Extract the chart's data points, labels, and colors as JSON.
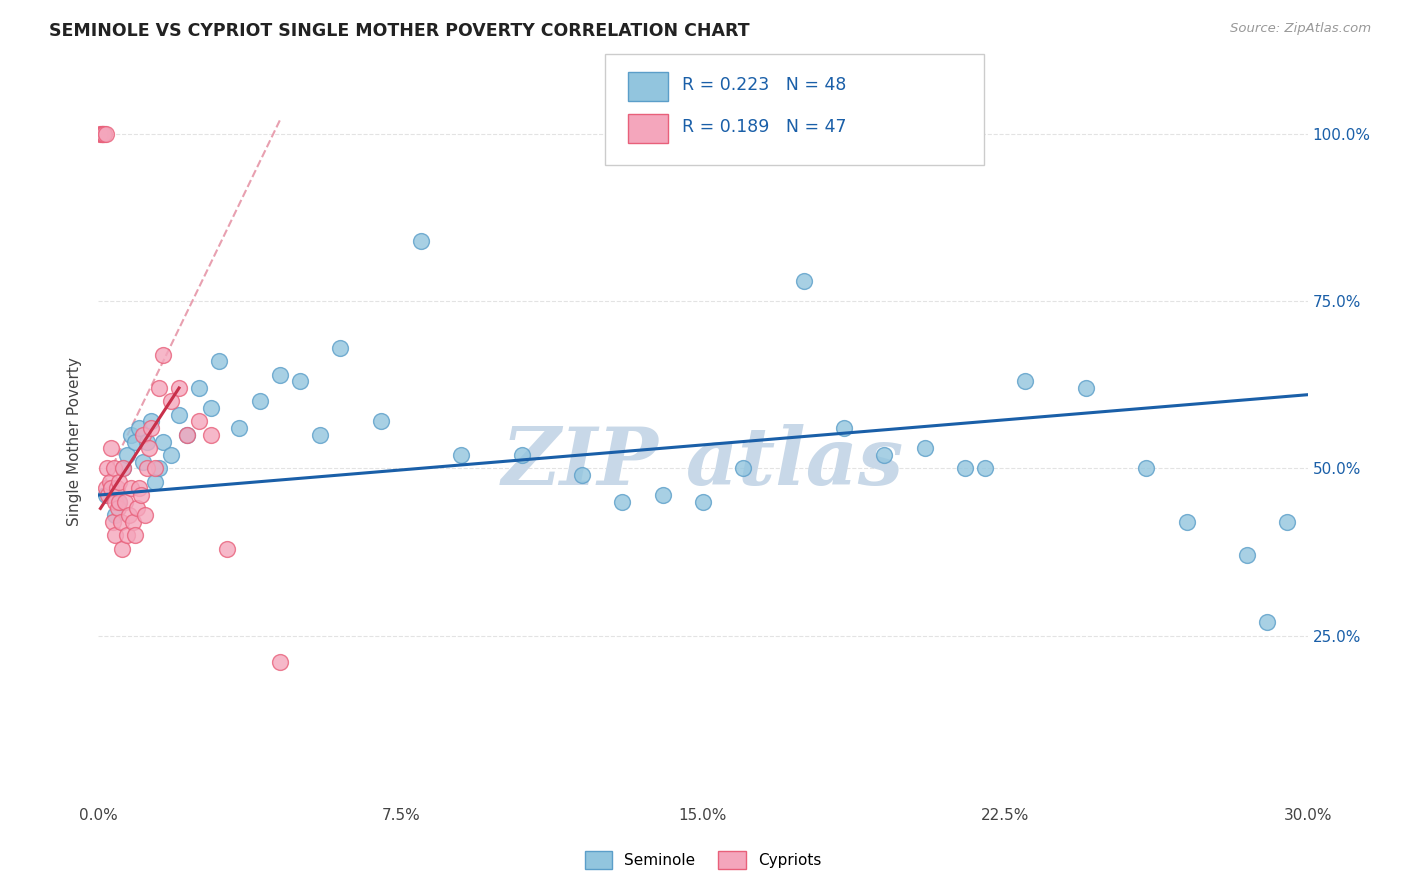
{
  "title": "SEMINOLE VS CYPRIOT SINGLE MOTHER POVERTY CORRELATION CHART",
  "source": "Source: ZipAtlas.com",
  "xlabel_ticks": [
    "0.0%",
    "7.5%",
    "15.0%",
    "22.5%",
    "30.0%"
  ],
  "xlabel_vals": [
    0.0,
    7.5,
    15.0,
    22.5,
    30.0
  ],
  "ylabel_ticks": [
    "25.0%",
    "50.0%",
    "75.0%",
    "100.0%"
  ],
  "ylabel_vals": [
    25.0,
    50.0,
    75.0,
    100.0
  ],
  "xlim": [
    0.0,
    30.0
  ],
  "ylim": [
    0.0,
    108.0
  ],
  "ylabel": "Single Mother Poverty",
  "seminole_R": 0.223,
  "seminole_N": 48,
  "cypriot_R": 0.189,
  "cypriot_N": 47,
  "seminole_color": "#92c5de",
  "cypriot_color": "#f4a6bc",
  "seminole_edge": "#5b9ec9",
  "cypriot_edge": "#e8607a",
  "seminole_x": [
    0.2,
    0.4,
    0.5,
    0.6,
    0.7,
    0.8,
    0.9,
    1.0,
    1.1,
    1.2,
    1.3,
    1.4,
    1.5,
    1.6,
    1.8,
    2.0,
    2.2,
    2.5,
    2.8,
    3.0,
    3.5,
    4.0,
    4.5,
    5.0,
    5.5,
    6.0,
    7.0,
    8.0,
    9.0,
    10.5,
    12.0,
    13.0,
    14.0,
    15.0,
    16.0,
    17.5,
    18.5,
    19.5,
    20.5,
    21.5,
    22.0,
    23.0,
    24.5,
    26.0,
    27.0,
    28.5,
    29.0,
    29.5
  ],
  "seminole_y": [
    46,
    43,
    45,
    50,
    52,
    55,
    54,
    56,
    51,
    54,
    57,
    48,
    50,
    54,
    52,
    58,
    55,
    62,
    59,
    66,
    56,
    60,
    64,
    63,
    55,
    68,
    57,
    84,
    52,
    52,
    49,
    45,
    46,
    45,
    50,
    78,
    56,
    52,
    53,
    50,
    50,
    63,
    62,
    50,
    42,
    37,
    27,
    42
  ],
  "cypriot_x": [
    0.05,
    0.08,
    0.1,
    0.12,
    0.15,
    0.18,
    0.2,
    0.22,
    0.25,
    0.28,
    0.3,
    0.32,
    0.35,
    0.38,
    0.4,
    0.42,
    0.45,
    0.48,
    0.5,
    0.52,
    0.55,
    0.58,
    0.6,
    0.65,
    0.7,
    0.75,
    0.8,
    0.85,
    0.9,
    0.95,
    1.0,
    1.05,
    1.1,
    1.15,
    1.2,
    1.25,
    1.3,
    1.4,
    1.5,
    1.6,
    1.8,
    2.0,
    2.2,
    2.5,
    2.8,
    3.2,
    4.5
  ],
  "cypriot_y": [
    100,
    100,
    100,
    100,
    100,
    100,
    47,
    50,
    46,
    48,
    53,
    47,
    42,
    50,
    45,
    40,
    47,
    44,
    48,
    45,
    42,
    38,
    50,
    45,
    40,
    43,
    47,
    42,
    40,
    44,
    47,
    46,
    55,
    43,
    50,
    53,
    56,
    50,
    62,
    67,
    60,
    62,
    55,
    57,
    55,
    38,
    21
  ],
  "seminole_line_color": "#1a5fa8",
  "cypriot_line_color": "#c8304a",
  "diagonal_color": "#e8a0b0",
  "watermark_color": "#c8d8e8",
  "watermark_text": "ZIP atlas",
  "background_color": "#ffffff",
  "grid_color": "#e0e0e0",
  "seminole_line_x0": 0.0,
  "seminole_line_y0": 46.0,
  "seminole_line_x1": 30.0,
  "seminole_line_y1": 61.0,
  "cypriot_line_x0": 0.05,
  "cypriot_line_y0": 44.0,
  "cypriot_line_x1": 2.0,
  "cypriot_line_y1": 62.0,
  "diagonal_x0": 0.0,
  "diagonal_y0": 46.0,
  "diagonal_x1": 4.5,
  "diagonal_y1": 102.0
}
